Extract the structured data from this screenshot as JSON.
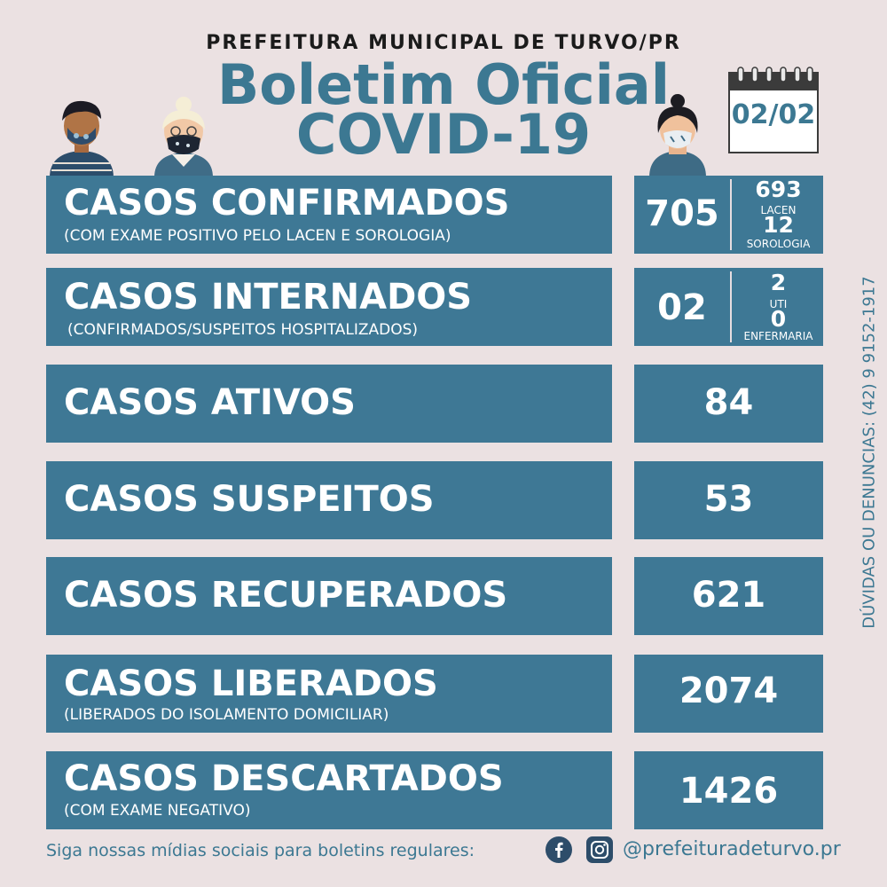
{
  "header": {
    "municipality": "PREFEITURA MUNICIPAL DE TURVO/PR",
    "title_line1": "Boletim Oficial",
    "title_line2": "COVID-19",
    "date": "02/02"
  },
  "colors": {
    "card": "#3e7895",
    "title": "#3c7892",
    "background": "#ebe1e2"
  },
  "cards": {
    "confirmados": {
      "label": "CASOS CONFIRMADOS",
      "sub": "(COM EXAME POSITIVO PELO LACEN E SOROLOGIA)",
      "value": "705",
      "a_value": "693",
      "a_label": "LACEN",
      "b_value": "12",
      "b_label": "SOROLOGIA"
    },
    "internados": {
      "label": "CASOS INTERNADOS",
      "sub": "(CONFIRMADOS/SUSPEITOS HOSPITALIZADOS)",
      "value": "02",
      "a_value": "2",
      "a_label": "UTI",
      "b_value": "0",
      "b_label": "ENFERMARIA"
    },
    "ativos": {
      "label": "CASOS ATIVOS",
      "value": "84"
    },
    "suspeitos": {
      "label": "CASOS SUSPEITOS",
      "value": "53"
    },
    "recuperados": {
      "label": "CASOS RECUPERADOS",
      "value": "621"
    },
    "liberados": {
      "label": "CASOS LIBERADOS",
      "sub": "(LIBERADOS DO ISOLAMENTO DOMICILIAR)",
      "value": "2074"
    },
    "descartados": {
      "label": "CASOS DESCARTADOS",
      "sub": "(COM EXAME NEGATIVO)",
      "value": "1426"
    }
  },
  "side_text": "DÚVIDAS OU DENUNCIAS: (42) 9 9152-1917",
  "footer": {
    "text": "Siga nossas mídias sociais para boletins regulares:",
    "handle": "@prefeituradeturvo.pr",
    "icons": [
      "facebook-icon",
      "instagram-icon"
    ]
  }
}
